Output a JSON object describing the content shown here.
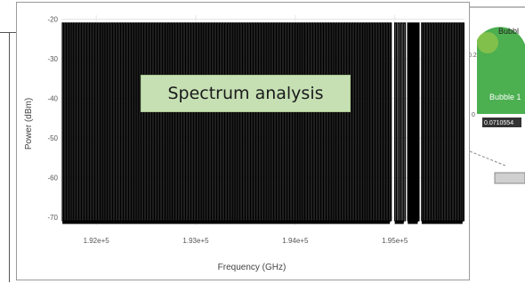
{
  "chart_data": {
    "type": "line",
    "title": "",
    "xlabel": "Frequency (GHz)",
    "ylabel": "Power (dBm)",
    "xlim": [
      191650,
      195700
    ],
    "ylim": [
      -72,
      -19
    ],
    "xticks": [
      {
        "value": 192000,
        "label": "1.92e+5"
      },
      {
        "value": 193000,
        "label": "1.93e+5"
      },
      {
        "value": 194000,
        "label": "1.94e+5"
      },
      {
        "value": 195000,
        "label": "1.95e+5"
      }
    ],
    "yticks": [
      -70,
      -60,
      -50,
      -40,
      -30,
      -20
    ],
    "grid": true,
    "series": [
      {
        "segments": [
          {
            "x_start": 191660,
            "x_end": 194950,
            "peak_dbm": -21,
            "floor_dbm": -71,
            "channel_spacing": 27.3
          },
          {
            "x_start": 195000,
            "x_end": 195090,
            "peak_dbm": -21,
            "floor_dbm": -71,
            "channel_spacing": 27.3
          },
          {
            "x_start": 195130,
            "x_end": 195230,
            "peak_dbm": -21,
            "floor_dbm": -71,
            "channel_spacing": 27.3
          },
          {
            "x_start": 195270,
            "x_end": 195680,
            "peak_dbm": -21,
            "floor_dbm": -71,
            "channel_spacing": 27.3
          }
        ],
        "color": "#000000"
      }
    ]
  },
  "overlay": {
    "label": "Spectrum analysis"
  },
  "background_widget": {
    "bubble_top_label": "Bubbl",
    "bubble_label": "Bubble 1",
    "tick_value_a": "0.2",
    "tick_value_b": "0",
    "readout": "0.0710554",
    "colors": {
      "bubble_fill": "#4caf50",
      "bubble_light": "#8bc34a"
    }
  }
}
